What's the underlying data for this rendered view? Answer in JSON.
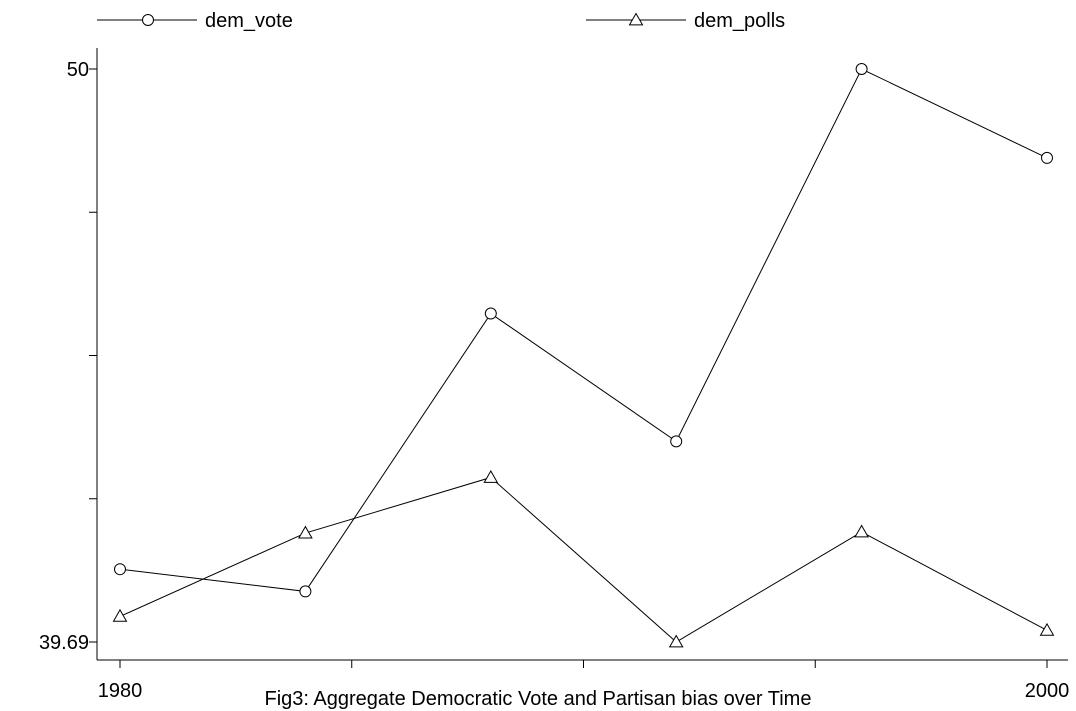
{
  "chart_data": {
    "type": "line",
    "title": "",
    "caption": "Fig3: Aggregate Democratic Vote and Partisan bias over Time",
    "xlabel": "",
    "ylabel": "",
    "x": [
      1980,
      1984,
      1988,
      1992,
      1996,
      2000
    ],
    "xlim": [
      1980,
      2000
    ],
    "ylim": [
      39.69,
      50
    ],
    "x_tick_labels": [
      "1980",
      "2000"
    ],
    "y_tick_labels": [
      "39.69",
      "50"
    ],
    "grid": false,
    "legend_position": "top",
    "series": [
      {
        "name": "dem_vote",
        "marker": "circle",
        "values": [
          41.0,
          40.6,
          45.6,
          43.3,
          50.0,
          48.4
        ]
      },
      {
        "name": "dem_polls",
        "marker": "triangle",
        "values": [
          40.15,
          41.65,
          42.65,
          39.69,
          41.67,
          39.9
        ]
      }
    ],
    "colors": {
      "line": "#000000",
      "marker_fill": "#ffffff"
    }
  }
}
